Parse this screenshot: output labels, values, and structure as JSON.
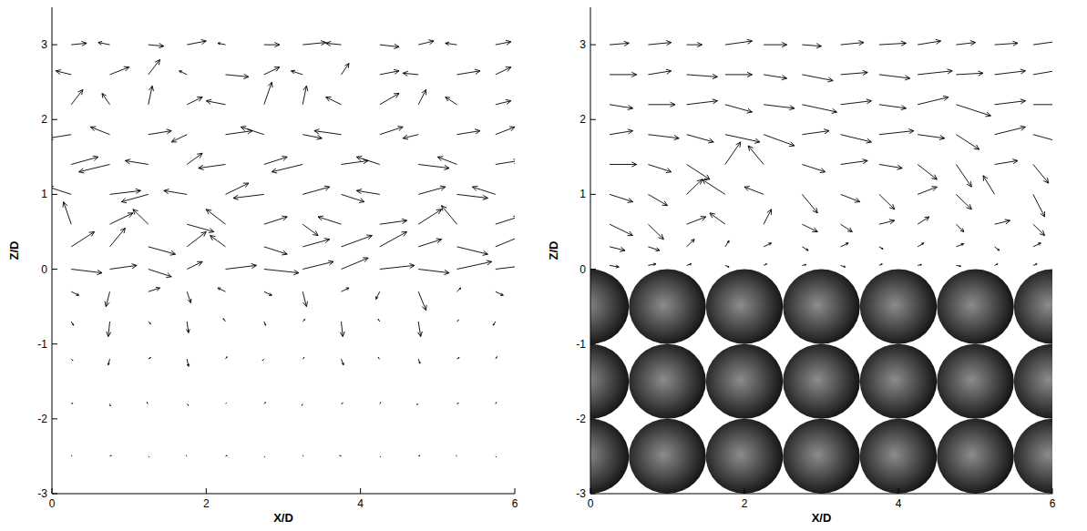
{
  "chart_data": [
    {
      "type": "vector_field",
      "x_label": "X/D",
      "y_label": "Z/D",
      "xlim": [
        0,
        6
      ],
      "ylim": [
        -3,
        3.5
      ],
      "xticks": [
        0,
        2,
        4,
        6
      ],
      "yticks": [
        -3,
        -2,
        -1,
        0,
        1,
        2,
        3
      ],
      "color": "#000000",
      "x": [
        0.25,
        0.75,
        1.25,
        1.75,
        2.25,
        2.75,
        3.25,
        3.75,
        4.25,
        4.75,
        5.25,
        5.75
      ],
      "rows": [
        {
          "z": 3.0,
          "u": [
            0.2,
            -0.15,
            0.2,
            0.25,
            -0.1,
            0.2,
            0.3,
            -0.2,
            0.25,
            0.2,
            -0.15,
            0.2
          ],
          "w": [
            0.02,
            0.03,
            -0.02,
            0.05,
            0.02,
            0,
            0.03,
            0.02,
            -0.03,
            0.05,
            0.02,
            0.04
          ]
        },
        {
          "z": 2.6,
          "u": [
            -0.2,
            0.25,
            0.15,
            -0.1,
            0.3,
            0.2,
            -0.15,
            0.1,
            0.25,
            -0.2,
            0.3,
            0.2
          ],
          "w": [
            0.05,
            0.1,
            0.2,
            0.05,
            -0.03,
            0.1,
            0.05,
            0.15,
            0.05,
            0.02,
            0.05,
            0.1
          ]
        },
        {
          "z": 2.2,
          "u": [
            0.15,
            -0.1,
            0.05,
            0.2,
            -0.25,
            0.1,
            0.05,
            -0.2,
            0.25,
            0.1,
            -0.15,
            0.2
          ],
          "w": [
            0.2,
            0.15,
            0.25,
            0.1,
            0.05,
            0.3,
            0.25,
            0.1,
            0.15,
            0.2,
            0.1,
            0.05
          ]
        },
        {
          "z": 1.8,
          "u": [
            -0.3,
            -0.25,
            0.3,
            -0.2,
            0.35,
            -0.3,
            0.25,
            -0.35,
            0.3,
            -0.2,
            0.3,
            0.25
          ],
          "w": [
            -0.05,
            0.1,
            0.05,
            -0.1,
            0.05,
            0.1,
            -0.05,
            0.05,
            0.1,
            -0.05,
            0.05,
            0.1
          ]
        },
        {
          "z": 1.4,
          "u": [
            0.35,
            -0.4,
            -0.3,
            0.2,
            -0.35,
            0.3,
            -0.4,
            0.35,
            -0.3,
            0.4,
            -0.25,
            0.3
          ],
          "w": [
            0.1,
            -0.1,
            0.05,
            0.15,
            -0.05,
            0.1,
            -0.1,
            0.05,
            0.1,
            -0.05,
            0.1,
            0.05
          ]
        },
        {
          "z": 1.0,
          "u": [
            -0.3,
            0.4,
            -0.35,
            -0.3,
            0.3,
            -0.4,
            0.35,
            0.3,
            -0.3,
            0.35,
            0.4,
            -0.3
          ],
          "w": [
            0.1,
            0.05,
            -0.1,
            0.05,
            0.15,
            -0.05,
            0.1,
            -0.1,
            0.05,
            0.1,
            -0.05,
            0.1
          ]
        },
        {
          "z": 0.6,
          "u": [
            -0.1,
            0.3,
            -0.2,
            0.35,
            -0.25,
            0.3,
            0.2,
            -0.3,
            0.35,
            0.3,
            -0.2,
            0.3
          ],
          "w": [
            0.3,
            0.15,
            0.2,
            -0.1,
            0.2,
            0.1,
            -0.15,
            0.1,
            0.05,
            0.2,
            0.25,
            0.1
          ]
        },
        {
          "z": 0.3,
          "u": [
            0.3,
            0.2,
            0.35,
            0.25,
            -0.2,
            0.3,
            0.35,
            0.4,
            0.35,
            0.3,
            0.4,
            0.35
          ],
          "w": [
            0.2,
            0.25,
            -0.1,
            0.2,
            0.15,
            -0.1,
            0.1,
            0.15,
            0.2,
            0.1,
            -0.1,
            0.15
          ]
        },
        {
          "z": 0.0,
          "u": [
            0.4,
            0.35,
            0.3,
            0.2,
            0.4,
            0.45,
            0.4,
            0.35,
            0.45,
            0.4,
            0.45,
            0.4
          ],
          "w": [
            -0.05,
            0.05,
            -0.1,
            0.1,
            0.05,
            -0.05,
            0.1,
            0.15,
            0.05,
            -0.05,
            0.1,
            0.05
          ]
        },
        {
          "z": -0.3,
          "u": [
            0.1,
            -0.05,
            0.15,
            0.05,
            -0.1,
            0.1,
            0.05,
            0.1,
            -0.05,
            0.1,
            0.05,
            0.1
          ],
          "w": [
            -0.05,
            -0.2,
            0.05,
            -0.15,
            0.05,
            -0.05,
            -0.2,
            0.05,
            -0.1,
            -0.25,
            0.05,
            -0.05
          ]
        },
        {
          "z": -0.7,
          "u": [
            0.03,
            -0.02,
            0.03,
            0.02,
            -0.03,
            0.02,
            0.03,
            0.02,
            -0.02,
            0.03,
            0.02,
            -0.03
          ],
          "w": [
            -0.05,
            -0.2,
            -0.03,
            -0.15,
            0.04,
            -0.05,
            0.03,
            -0.2,
            0.03,
            -0.2,
            0.02,
            -0.05
          ]
        },
        {
          "z": -1.2,
          "u": [
            0.02,
            -0.02,
            0.03,
            0.02,
            0.02,
            -0.02,
            0.02,
            0.03,
            -0.02,
            0.02,
            0.03,
            0.02
          ],
          "w": [
            -0.02,
            -0.08,
            0.02,
            -0.1,
            0.03,
            -0.02,
            0.02,
            -0.08,
            0.02,
            -0.06,
            0.02,
            0.03
          ]
        },
        {
          "z": -1.8,
          "u": [
            0.02,
            0.01,
            -0.02,
            0.02,
            0.01,
            0.02,
            -0.01,
            0.02,
            0.01,
            -0.02,
            0.02,
            0.01
          ],
          "w": [
            0.01,
            -0.03,
            0.02,
            -0.02,
            0.01,
            0.02,
            -0.02,
            0.01,
            0.02,
            -0.01,
            0.01,
            0.02
          ]
        },
        {
          "z": -2.5,
          "u": [
            0.01,
            0.02,
            0.01,
            -0.01,
            0.02,
            0.01,
            0.01,
            -0.02,
            0.01,
            0.02,
            -0.01,
            0.01
          ],
          "w": [
            0.01,
            0.01,
            -0.01,
            0.01,
            0.01,
            -0.01,
            0.01,
            0.01,
            -0.01,
            0.01,
            0.01,
            -0.01
          ]
        }
      ]
    },
    {
      "type": "vector_field",
      "x_label": "X/D",
      "y_label": "Z/D",
      "xlim": [
        0,
        6
      ],
      "ylim": [
        -3,
        3.5
      ],
      "xticks": [
        0,
        2,
        4,
        6
      ],
      "yticks": [
        -3,
        -2,
        -1,
        0,
        1,
        2,
        3
      ],
      "color": "#000000",
      "x": [
        0.25,
        0.75,
        1.25,
        1.75,
        2.25,
        2.75,
        3.25,
        3.75,
        4.25,
        4.75,
        5.25,
        5.75
      ],
      "rows": [
        {
          "z": 3.0,
          "u": [
            0.25,
            0.3,
            0.2,
            0.35,
            0.3,
            0.25,
            0.3,
            0.35,
            0.3,
            0.25,
            0.3,
            0.35
          ],
          "w": [
            0.02,
            0.03,
            0,
            0.05,
            0,
            -0.02,
            0.03,
            0.02,
            0.05,
            0.03,
            0.02,
            0.05
          ]
        },
        {
          "z": 2.6,
          "u": [
            0.35,
            0.3,
            0.4,
            0.35,
            0.3,
            0.4,
            0.35,
            0.4,
            0.45,
            0.35,
            0.4,
            0.45
          ],
          "w": [
            0,
            0.05,
            -0.03,
            0,
            -0.05,
            -0.08,
            0.03,
            -0.05,
            0.05,
            0.02,
            0.05,
            0.08
          ]
        },
        {
          "z": 2.2,
          "u": [
            0.3,
            0.35,
            0.4,
            0.35,
            0.4,
            0.45,
            0.4,
            0.35,
            0.4,
            0.45,
            0.4,
            0.35
          ],
          "w": [
            -0.05,
            0,
            0.05,
            -0.1,
            -0.05,
            -0.1,
            0.05,
            -0.05,
            0.1,
            -0.15,
            0.05,
            0
          ]
        },
        {
          "z": 1.8,
          "u": [
            0.3,
            0.4,
            0.35,
            0.45,
            0.4,
            0.35,
            0.4,
            0.45,
            0.35,
            0.3,
            0.4,
            0.35
          ],
          "w": [
            0.05,
            -0.05,
            -0.1,
            -0.1,
            -0.15,
            0.05,
            -0.1,
            0.05,
            -0.05,
            -0.2,
            0.1,
            -0.1
          ]
        },
        {
          "z": 1.4,
          "u": [
            0.35,
            0.3,
            0.3,
            0.2,
            -0.2,
            0.3,
            0.35,
            0.3,
            0.25,
            0.2,
            0.3,
            0.2
          ],
          "w": [
            0,
            -0.1,
            -0.2,
            0.3,
            0.25,
            -0.1,
            0.05,
            -0.05,
            -0.2,
            -0.3,
            0.05,
            -0.25
          ]
        },
        {
          "z": 1.0,
          "u": [
            0.3,
            0.25,
            0.2,
            -0.3,
            -0.25,
            0.2,
            0.25,
            0.2,
            0.25,
            0.2,
            -0.15,
            0.15
          ],
          "w": [
            -0.1,
            -0.15,
            0.2,
            0.2,
            0.1,
            -0.25,
            -0.1,
            -0.2,
            0.1,
            -0.2,
            0.25,
            -0.3
          ]
        },
        {
          "z": 0.6,
          "u": [
            0.3,
            0.2,
            0.25,
            -0.2,
            0.1,
            0.2,
            0.15,
            0.2,
            0.15,
            0.1,
            0.2,
            0.15
          ],
          "w": [
            -0.15,
            -0.2,
            0.1,
            0.15,
            0.2,
            -0.1,
            -0.1,
            0.05,
            0.1,
            -0.1,
            0.05,
            -0.15
          ]
        },
        {
          "z": 0.3,
          "u": [
            0.2,
            0.15,
            0.1,
            0.05,
            0.1,
            0.08,
            0.1,
            0.05,
            0.08,
            0.1,
            0.06,
            0.1
          ],
          "w": [
            -0.05,
            -0.05,
            0.1,
            0.08,
            0.05,
            -0.05,
            0.05,
            -0.03,
            0.05,
            0.04,
            -0.05,
            0.05
          ]
        },
        {
          "z": 0.05,
          "u": [
            0.12,
            0.1,
            0.06,
            0.05,
            0.04,
            0.05,
            0.06,
            0.04,
            0.05,
            0.06,
            0.04,
            0.05
          ],
          "w": [
            -0.02,
            0.02,
            0.02,
            -0.02,
            0.02,
            0.01,
            -0.02,
            0.02,
            0.01,
            -0.01,
            0.02,
            0.02
          ]
        }
      ],
      "spheres": {
        "x": [
          0,
          1,
          2,
          3,
          4,
          5,
          6
        ],
        "z": [
          -0.5,
          -1.5,
          -2.5
        ],
        "diameter": 1
      }
    }
  ]
}
